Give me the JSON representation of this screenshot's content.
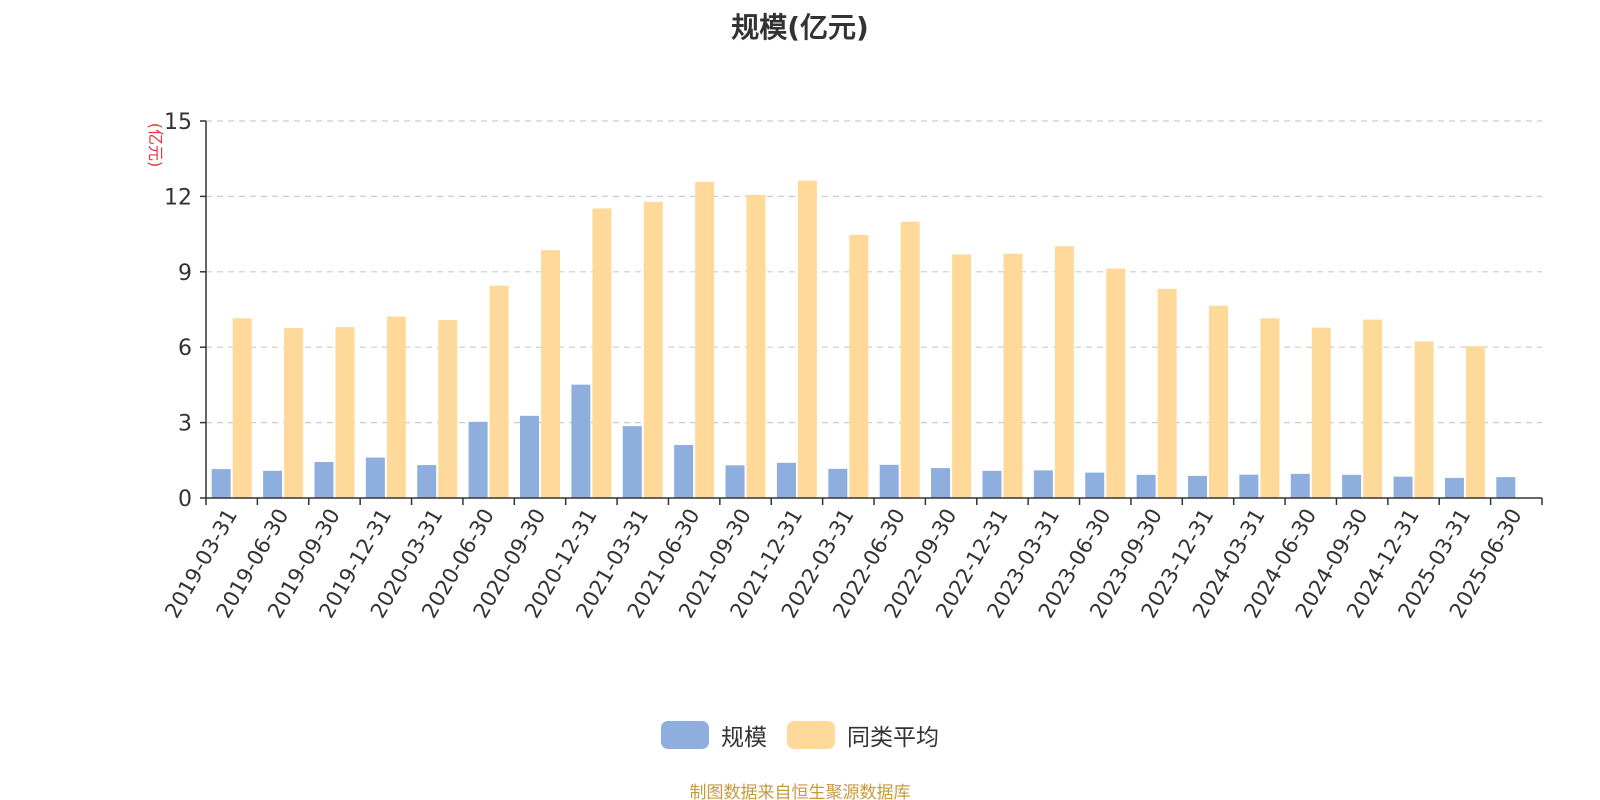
{
  "chart_data": {
    "type": "bar",
    "title": "规模(亿元)",
    "ylabel": "(亿元)",
    "ylim": [
      0,
      15
    ],
    "yticks": [
      "0",
      "3",
      "6",
      "9",
      "12",
      "15"
    ],
    "grid": true,
    "legend_position": "bottom",
    "categories": [
      "2019-03-31",
      "2019-06-30",
      "2019-09-30",
      "2019-12-31",
      "2020-03-31",
      "2020-06-30",
      "2020-09-30",
      "2020-12-31",
      "2021-03-31",
      "2021-06-30",
      "2021-09-30",
      "2021-12-31",
      "2022-03-31",
      "2022-06-30",
      "2022-09-30",
      "2022-12-31",
      "2023-03-31",
      "2023-06-30",
      "2023-09-30",
      "2023-12-31",
      "2024-03-31",
      "2024-06-30",
      "2024-09-30",
      "2024-12-31",
      "2025-03-31",
      "2025-06-30"
    ],
    "series": [
      {
        "name": "规模",
        "color": "#8eaedd",
        "values": [
          1.15,
          1.08,
          1.43,
          1.61,
          1.31,
          3.03,
          3.27,
          4.51,
          2.86,
          2.11,
          1.3,
          1.4,
          1.16,
          1.32,
          1.19,
          1.08,
          1.1,
          1.01,
          0.92,
          0.88,
          0.93,
          0.96,
          0.92,
          0.85,
          0.8,
          0.83
        ]
      },
      {
        "name": "同类平均",
        "color": "#ffd99a",
        "values": [
          7.15,
          6.76,
          6.8,
          7.22,
          7.08,
          8.45,
          9.86,
          11.52,
          11.78,
          12.58,
          12.06,
          12.63,
          10.47,
          10.99,
          9.69,
          9.72,
          10.02,
          9.13,
          8.32,
          7.65,
          7.15,
          6.78,
          7.1,
          6.23,
          6.04,
          null
        ]
      }
    ]
  },
  "source_note": "制图数据来自恒生聚源数据库",
  "colors": {
    "ylabel": "#e8323a",
    "source_note": "#c79a3b",
    "axis": "#333333",
    "grid": "#cccccc"
  }
}
